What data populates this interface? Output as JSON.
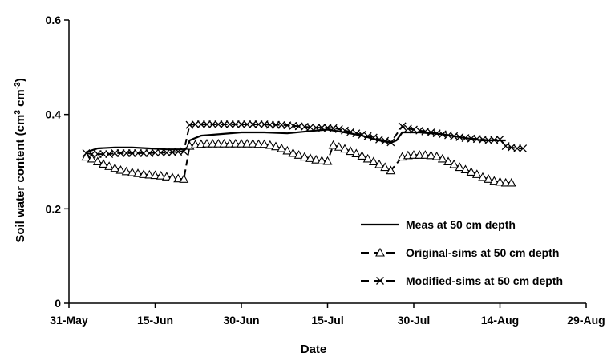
{
  "chart_data": {
    "type": "line",
    "xlabel": "Date",
    "ylabel": "Soil water content (cm",
    "ylabel_sup1": "3",
    "ylabel_mid": " cm",
    "ylabel_sup2": "-3",
    "ylabel_end": ")",
    "ylim": [
      0,
      0.6
    ],
    "y_ticks": [
      {
        "value": 0,
        "label": "0"
      },
      {
        "value": 0.2,
        "label": "0.2"
      },
      {
        "value": 0.4,
        "label": "0.4"
      },
      {
        "value": 0.6,
        "label": "0.6"
      }
    ],
    "xlim": [
      "2010-05-31",
      "2010-08-29"
    ],
    "x_ticks": [
      {
        "date": "2010-05-31",
        "label": "31-May"
      },
      {
        "date": "2010-06-15",
        "label": "15-Jun"
      },
      {
        "date": "2010-06-30",
        "label": "30-Jun"
      },
      {
        "date": "2010-07-15",
        "label": "15-Jul"
      },
      {
        "date": "2010-07-30",
        "label": "30-Jul"
      },
      {
        "date": "2010-08-14",
        "label": "14-Aug"
      },
      {
        "date": "2010-08-29",
        "label": "29-Aug"
      }
    ],
    "grid": false,
    "legend_position": "bottom-right",
    "series": [
      {
        "name": "Meas at 50 cm depth",
        "style": "solid",
        "marker": "none",
        "color": "#000000",
        "segments": [
          [
            [
              "2010-06-03",
              0.32
            ],
            [
              "2010-06-05",
              0.328
            ],
            [
              "2010-06-08",
              0.33
            ],
            [
              "2010-06-11",
              0.33
            ],
            [
              "2010-06-14",
              0.328
            ],
            [
              "2010-06-17",
              0.326
            ],
            [
              "2010-06-20",
              0.326
            ],
            [
              "2010-06-20.6",
              0.33
            ],
            [
              "2010-06-21",
              0.345
            ],
            [
              "2010-06-23",
              0.355
            ],
            [
              "2010-06-26",
              0.358
            ],
            [
              "2010-06-30",
              0.362
            ],
            [
              "2010-07-04",
              0.362
            ],
            [
              "2010-07-08",
              0.36
            ],
            [
              "2010-07-12",
              0.365
            ],
            [
              "2010-07-15",
              0.368
            ],
            [
              "2010-07-18",
              0.362
            ],
            [
              "2010-07-21",
              0.355
            ],
            [
              "2010-07-24",
              0.345
            ],
            [
              "2010-07-26",
              0.34
            ],
            [
              "2010-07-27",
              0.345
            ],
            [
              "2010-07-28",
              0.362
            ],
            [
              "2010-07-31",
              0.362
            ],
            [
              "2010-08-04",
              0.358
            ],
            [
              "2010-08-08",
              0.35
            ],
            [
              "2010-08-11",
              0.345
            ],
            [
              "2010-08-14",
              0.345
            ],
            [
              "2010-08-15",
              0.345
            ]
          ]
        ]
      },
      {
        "name": "Original-sims at 50 cm depth",
        "style": "dashed",
        "marker": "triangle",
        "color": "#000000",
        "segments": [
          [
            [
              "2010-06-03",
              0.31
            ],
            [
              "2010-06-04",
              0.306
            ],
            [
              "2010-06-05",
              0.3
            ],
            [
              "2010-06-06",
              0.295
            ],
            [
              "2010-06-07",
              0.29
            ],
            [
              "2010-06-08",
              0.286
            ],
            [
              "2010-06-09",
              0.282
            ],
            [
              "2010-06-10",
              0.279
            ],
            [
              "2010-06-11",
              0.277
            ],
            [
              "2010-06-12",
              0.275
            ],
            [
              "2010-06-13",
              0.273
            ],
            [
              "2010-06-14",
              0.272
            ],
            [
              "2010-06-15",
              0.271
            ],
            [
              "2010-06-16",
              0.27
            ],
            [
              "2010-06-17",
              0.268
            ],
            [
              "2010-06-18",
              0.266
            ],
            [
              "2010-06-19",
              0.264
            ],
            [
              "2010-06-20",
              0.263
            ]
          ],
          [
            [
              "2010-06-21",
              0.333
            ],
            [
              "2010-06-22",
              0.336
            ],
            [
              "2010-06-23",
              0.337
            ],
            [
              "2010-06-24",
              0.338
            ],
            [
              "2010-06-25",
              0.338
            ],
            [
              "2010-06-26",
              0.338
            ],
            [
              "2010-06-27",
              0.338
            ],
            [
              "2010-06-28",
              0.338
            ],
            [
              "2010-06-29",
              0.338
            ],
            [
              "2010-06-30",
              0.338
            ],
            [
              "2010-07-01",
              0.338
            ],
            [
              "2010-07-02",
              0.338
            ],
            [
              "2010-07-03",
              0.337
            ],
            [
              "2010-07-04",
              0.337
            ],
            [
              "2010-07-05",
              0.335
            ],
            [
              "2010-07-06",
              0.332
            ],
            [
              "2010-07-07",
              0.328
            ],
            [
              "2010-07-08",
              0.323
            ],
            [
              "2010-07-09",
              0.318
            ],
            [
              "2010-07-10",
              0.314
            ],
            [
              "2010-07-11",
              0.31
            ],
            [
              "2010-07-12",
              0.307
            ],
            [
              "2010-07-13",
              0.304
            ],
            [
              "2010-07-14",
              0.302
            ],
            [
              "2010-07-15",
              0.301
            ]
          ],
          [
            [
              "2010-07-16",
              0.335
            ],
            [
              "2010-07-17",
              0.331
            ],
            [
              "2010-07-18",
              0.327
            ],
            [
              "2010-07-19",
              0.322
            ],
            [
              "2010-07-20",
              0.317
            ],
            [
              "2010-07-21",
              0.312
            ],
            [
              "2010-07-22",
              0.306
            ],
            [
              "2010-07-23",
              0.3
            ],
            [
              "2010-07-24",
              0.294
            ],
            [
              "2010-07-25",
              0.288
            ],
            [
              "2010-07-26",
              0.281
            ]
          ],
          [
            [
              "2010-07-28",
              0.31
            ],
            [
              "2010-07-29",
              0.313
            ],
            [
              "2010-07-30",
              0.314
            ],
            [
              "2010-07-31",
              0.314
            ],
            [
              "2010-08-01",
              0.314
            ],
            [
              "2010-08-02",
              0.313
            ],
            [
              "2010-08-03",
              0.311
            ],
            [
              "2010-08-04",
              0.306
            ],
            [
              "2010-08-05",
              0.3
            ],
            [
              "2010-08-06",
              0.294
            ],
            [
              "2010-08-07",
              0.288
            ],
            [
              "2010-08-08",
              0.283
            ],
            [
              "2010-08-09",
              0.278
            ],
            [
              "2010-08-10",
              0.273
            ],
            [
              "2010-08-11",
              0.267
            ],
            [
              "2010-08-12",
              0.263
            ],
            [
              "2010-08-13",
              0.259
            ],
            [
              "2010-08-14",
              0.257
            ],
            [
              "2010-08-15",
              0.255
            ],
            [
              "2010-08-16",
              0.255
            ]
          ]
        ]
      },
      {
        "name": "Modified-sims at 50 cm depth",
        "style": "dashed",
        "marker": "x",
        "color": "#000000",
        "segments": [
          [
            [
              "2010-06-03",
              0.318
            ],
            [
              "2010-06-04",
              0.316
            ],
            [
              "2010-06-05",
              0.316
            ],
            [
              "2010-06-06",
              0.316
            ],
            [
              "2010-06-07",
              0.316
            ],
            [
              "2010-06-08",
              0.318
            ],
            [
              "2010-06-09",
              0.318
            ],
            [
              "2010-06-10",
              0.318
            ],
            [
              "2010-06-11",
              0.318
            ],
            [
              "2010-06-12",
              0.318
            ],
            [
              "2010-06-13",
              0.318
            ],
            [
              "2010-06-14",
              0.318
            ],
            [
              "2010-06-15",
              0.319
            ],
            [
              "2010-06-16",
              0.319
            ],
            [
              "2010-06-17",
              0.319
            ],
            [
              "2010-06-18",
              0.32
            ],
            [
              "2010-06-19",
              0.321
            ],
            [
              "2010-06-20",
              0.322
            ]
          ],
          [
            [
              "2010-06-21",
              0.378
            ],
            [
              "2010-06-22",
              0.379
            ],
            [
              "2010-06-23",
              0.379
            ],
            [
              "2010-06-24",
              0.379
            ],
            [
              "2010-06-25",
              0.379
            ],
            [
              "2010-06-26",
              0.379
            ],
            [
              "2010-06-27",
              0.379
            ],
            [
              "2010-06-28",
              0.379
            ],
            [
              "2010-06-29",
              0.379
            ],
            [
              "2010-06-30",
              0.379
            ],
            [
              "2010-07-01",
              0.379
            ],
            [
              "2010-07-02",
              0.379
            ],
            [
              "2010-07-03",
              0.379
            ],
            [
              "2010-07-04",
              0.379
            ],
            [
              "2010-07-05",
              0.378
            ],
            [
              "2010-07-06",
              0.378
            ],
            [
              "2010-07-07",
              0.378
            ],
            [
              "2010-07-08",
              0.377
            ],
            [
              "2010-07-09",
              0.376
            ],
            [
              "2010-07-10",
              0.375
            ],
            [
              "2010-07-11",
              0.374
            ],
            [
              "2010-07-12",
              0.373
            ],
            [
              "2010-07-13",
              0.372
            ],
            [
              "2010-07-14",
              0.372
            ],
            [
              "2010-07-15",
              0.372
            ],
            [
              "2010-07-16",
              0.371
            ],
            [
              "2010-07-17",
              0.369
            ],
            [
              "2010-07-18",
              0.366
            ],
            [
              "2010-07-19",
              0.363
            ],
            [
              "2010-07-20",
              0.36
            ],
            [
              "2010-07-21",
              0.357
            ],
            [
              "2010-07-22",
              0.354
            ],
            [
              "2010-07-23",
              0.351
            ],
            [
              "2010-07-24",
              0.347
            ],
            [
              "2010-07-25",
              0.344
            ],
            [
              "2010-07-26",
              0.341
            ]
          ],
          [
            [
              "2010-07-28",
              0.375
            ],
            [
              "2010-07-29",
              0.37
            ],
            [
              "2010-07-30",
              0.368
            ],
            [
              "2010-07-31",
              0.366
            ],
            [
              "2010-08-01",
              0.364
            ],
            [
              "2010-08-02",
              0.362
            ],
            [
              "2010-08-03",
              0.36
            ],
            [
              "2010-08-04",
              0.358
            ],
            [
              "2010-08-05",
              0.356
            ],
            [
              "2010-08-06",
              0.354
            ],
            [
              "2010-08-07",
              0.352
            ],
            [
              "2010-08-08",
              0.35
            ],
            [
              "2010-08-09",
              0.349
            ],
            [
              "2010-08-10",
              0.348
            ],
            [
              "2010-08-11",
              0.347
            ],
            [
              "2010-08-12",
              0.345
            ],
            [
              "2010-08-13",
              0.346
            ],
            [
              "2010-08-14",
              0.347
            ],
            [
              "2010-08-15",
              0.333
            ],
            [
              "2010-08-16",
              0.33
            ],
            [
              "2010-08-17",
              0.328
            ],
            [
              "2010-08-18",
              0.328
            ]
          ]
        ]
      }
    ]
  }
}
